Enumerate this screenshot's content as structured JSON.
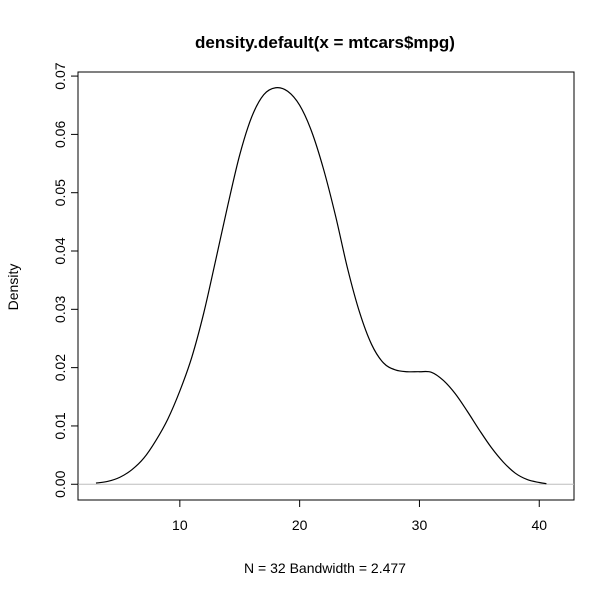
{
  "chart_data": {
    "type": "line",
    "title": "density.default(x = mtcars$mpg)",
    "xlabel": "N = 32   Bandwidth = 2.477",
    "ylabel": "Density",
    "xlim": [
      1.5,
      42.9
    ],
    "ylim": [
      -0.0027,
      0.0707
    ],
    "xticks": [
      "10",
      "20",
      "30",
      "40"
    ],
    "yticks": [
      "0.00",
      "0.01",
      "0.02",
      "0.03",
      "0.04",
      "0.05",
      "0.06",
      "0.07"
    ],
    "baseline": 0,
    "grid": false,
    "series": [
      {
        "x": [
          3.0,
          4.0,
          5.0,
          6.0,
          7.0,
          8.0,
          9.0,
          10.0,
          11.0,
          12.0,
          13.0,
          14.0,
          15.0,
          16.0,
          17.0,
          18.0,
          19.0,
          20.0,
          21.0,
          22.0,
          23.0,
          24.0,
          25.0,
          26.0,
          27.0,
          28.0,
          29.0,
          30.0,
          31.0,
          32.0,
          33.0,
          34.0,
          35.0,
          36.0,
          37.0,
          38.0,
          39.0,
          40.0,
          40.6
        ],
        "y": [
          0.0002,
          0.0005,
          0.0012,
          0.0025,
          0.0045,
          0.0075,
          0.0112,
          0.016,
          0.0218,
          0.0294,
          0.0385,
          0.0478,
          0.0565,
          0.063,
          0.0668,
          0.068,
          0.0674,
          0.065,
          0.0605,
          0.054,
          0.046,
          0.037,
          0.0295,
          0.024,
          0.0208,
          0.0196,
          0.0193,
          0.0193,
          0.0192,
          0.0178,
          0.0155,
          0.0125,
          0.0093,
          0.0063,
          0.0038,
          0.0019,
          0.0008,
          0.0003,
          0.0001
        ]
      }
    ]
  }
}
